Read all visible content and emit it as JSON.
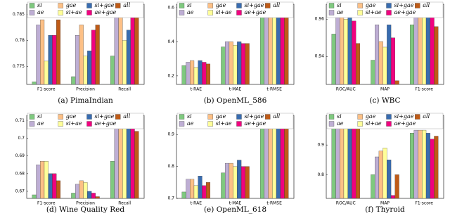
{
  "chart_data": [
    {
      "type": "bar",
      "title": "(a) PimaIndian",
      "categories": [
        "F1-score",
        "Precision",
        "Recall"
      ],
      "series": [
        {
          "name": "si",
          "color": "#7fc97f",
          "values": [
            0.772,
            0.773,
            0.777
          ]
        },
        {
          "name": "ae",
          "color": "#beaed4",
          "values": [
            0.783,
            0.781,
            0.785
          ]
        },
        {
          "name": "gae",
          "color": "#fdc086",
          "values": [
            0.784,
            0.783,
            0.786
          ]
        },
        {
          "name": "si+ae",
          "color": "#ffff99",
          "values": [
            0.776,
            0.777,
            0.78
          ]
        },
        {
          "name": "si+gae",
          "color": "#386cb0",
          "values": [
            0.781,
            0.778,
            0.782
          ]
        },
        {
          "name": "ae+gae",
          "color": "#f0027f",
          "values": [
            0.781,
            0.782,
            0.785
          ]
        },
        {
          "name": "all",
          "color": "#bf5b17",
          "values": [
            0.784,
            0.783,
            0.786
          ]
        }
      ],
      "ylim": [
        0.7715,
        0.787
      ],
      "yticks": [
        0.775,
        0.78,
        0.785
      ]
    },
    {
      "type": "bar",
      "title": "(b) OpenML_586",
      "categories": [
        "t-RAE",
        "t-MAE",
        "t-RMSE"
      ],
      "series": [
        {
          "name": "si",
          "color": "#7fc97f",
          "values": [
            0.26,
            0.37,
            0.58
          ]
        },
        {
          "name": "ae",
          "color": "#beaed4",
          "values": [
            0.28,
            0.4,
            0.59
          ]
        },
        {
          "name": "gae",
          "color": "#fdc086",
          "values": [
            0.29,
            0.4,
            0.59
          ]
        },
        {
          "name": "si+ae",
          "color": "#ffff99",
          "values": [
            0.25,
            0.38,
            0.58
          ]
        },
        {
          "name": "si+gae",
          "color": "#386cb0",
          "values": [
            0.29,
            0.4,
            0.59
          ]
        },
        {
          "name": "ae+gae",
          "color": "#f0027f",
          "values": [
            0.28,
            0.39,
            0.58
          ]
        },
        {
          "name": "all",
          "color": "#bf5b17",
          "values": [
            0.27,
            0.39,
            0.58
          ]
        }
      ],
      "ylim": [
        0.15,
        0.62
      ],
      "yticks": [
        0.2,
        0.4,
        0.6
      ]
    },
    {
      "type": "bar",
      "title": "(c) WBC",
      "categories": [
        "ROC/AUC",
        "MAP",
        "F1-score"
      ],
      "series": [
        {
          "name": "si",
          "color": "#7fc97f",
          "values": [
            0.952,
            0.938,
            0.957
          ]
        },
        {
          "name": "ae",
          "color": "#beaed4",
          "values": [
            0.963,
            0.957,
            0.966
          ]
        },
        {
          "name": "gae",
          "color": "#fdc086",
          "values": [
            0.964,
            0.948,
            0.963
          ]
        },
        {
          "name": "si+ae",
          "color": "#ffff99",
          "values": [
            0.96,
            0.945,
            0.962
          ]
        },
        {
          "name": "si+gae",
          "color": "#386cb0",
          "values": [
            0.962,
            0.957,
            0.966
          ]
        },
        {
          "name": "ae+gae",
          "color": "#f0027f",
          "values": [
            0.959,
            0.95,
            0.963
          ]
        },
        {
          "name": "all",
          "color": "#bf5b17",
          "values": [
            0.947,
            0.927,
            0.956
          ]
        }
      ],
      "ylim": [
        0.925,
        0.968
      ],
      "yticks": [
        0.94,
        0.96
      ]
    },
    {
      "type": "bar",
      "title": "(d) Wine Quality Red",
      "categories": [
        "F1-score",
        "Precision",
        "Recall"
      ],
      "series": [
        {
          "name": "si",
          "color": "#7fc97f",
          "values": [
            0.668,
            0.669,
            0.687
          ]
        },
        {
          "name": "ae",
          "color": "#beaed4",
          "values": [
            0.685,
            0.674,
            0.711
          ]
        },
        {
          "name": "gae",
          "color": "#fdc086",
          "values": [
            0.687,
            0.676,
            0.71
          ]
        },
        {
          "name": "si+ae",
          "color": "#ffff99",
          "values": [
            0.687,
            0.675,
            0.707
          ]
        },
        {
          "name": "si+gae",
          "color": "#386cb0",
          "values": [
            0.68,
            0.67,
            0.707
          ]
        },
        {
          "name": "ae+gae",
          "color": "#f0027f",
          "values": [
            0.68,
            0.669,
            0.707
          ]
        },
        {
          "name": "all",
          "color": "#bf5b17",
          "values": [
            0.676,
            0.667,
            0.704
          ]
        }
      ],
      "ylim": [
        0.666,
        0.713
      ],
      "yticks": [
        0.67,
        0.68,
        0.69,
        0.7,
        0.71
      ]
    },
    {
      "type": "bar",
      "title": "(e) OpenML_618",
      "categories": [
        "t-RAE",
        "t-MAE",
        "t-RMSE"
      ],
      "series": [
        {
          "name": "si",
          "color": "#7fc97f",
          "values": [
            0.72,
            0.78,
            0.92
          ]
        },
        {
          "name": "ae",
          "color": "#beaed4",
          "values": [
            0.76,
            0.81,
            0.94
          ]
        },
        {
          "name": "gae",
          "color": "#fdc086",
          "values": [
            0.76,
            0.81,
            0.94
          ]
        },
        {
          "name": "si+ae",
          "color": "#ffff99",
          "values": [
            0.74,
            0.8,
            0.92
          ]
        },
        {
          "name": "si+gae",
          "color": "#386cb0",
          "values": [
            0.77,
            0.82,
            0.94
          ]
        },
        {
          "name": "ae+gae",
          "color": "#f0027f",
          "values": [
            0.74,
            0.8,
            0.94
          ]
        },
        {
          "name": "all",
          "color": "#bf5b17",
          "values": [
            0.75,
            0.8,
            0.93
          ]
        }
      ],
      "ylim": [
        0.7,
        0.96
      ],
      "yticks": [
        0.7,
        0.8,
        0.9
      ]
    },
    {
      "type": "bar",
      "title": "(f) Thyroid",
      "categories": [
        "ROC/AUC",
        "MAP",
        "F1-score"
      ],
      "series": [
        {
          "name": "si",
          "color": "#7fc97f",
          "values": [
            0.97,
            0.8,
            0.94
          ]
        },
        {
          "name": "ae",
          "color": "#beaed4",
          "values": [
            0.97,
            0.86,
            0.95
          ]
        },
        {
          "name": "gae",
          "color": "#fdc086",
          "values": [
            0.98,
            0.88,
            0.95
          ]
        },
        {
          "name": "si+ae",
          "color": "#ffff99",
          "values": [
            0.97,
            0.89,
            0.95
          ]
        },
        {
          "name": "si+gae",
          "color": "#386cb0",
          "values": [
            0.98,
            0.85,
            0.94
          ]
        },
        {
          "name": "ae+gae",
          "color": "#f0027f",
          "values": [
            0.96,
            0.73,
            0.92
          ]
        },
        {
          "name": "all",
          "color": "#bf5b17",
          "values": [
            0.97,
            0.8,
            0.93
          ]
        }
      ],
      "ylim": [
        0.72,
        1.0
      ],
      "yticks": [
        0.8,
        0.9
      ]
    }
  ]
}
